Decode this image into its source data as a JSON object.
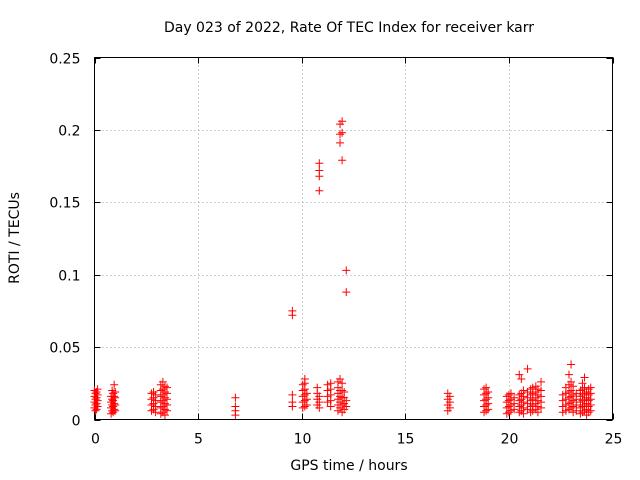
{
  "chart_data": {
    "type": "scatter",
    "title": "Day 023 of 2022, Rate Of TEC Index for receiver karr",
    "xlabel": "GPS time / hours",
    "ylabel": "ROTI / TECUs",
    "xlim": [
      0,
      25
    ],
    "ylim": [
      0,
      0.25
    ],
    "xticks": [
      0,
      5,
      10,
      15,
      20,
      25
    ],
    "xtick_labels": [
      "0",
      "5",
      "10",
      "15",
      "20",
      "25"
    ],
    "yticks": [
      0,
      0.05,
      0.1,
      0.15,
      0.2,
      0.25
    ],
    "ytick_labels": [
      "0",
      "0.05",
      "0.1",
      "0.15",
      "0.2",
      "0.25"
    ],
    "grid": true,
    "marker": "+",
    "series": [
      {
        "name": "ROTI",
        "color": "#ff0000",
        "points": [
          [
            0.0,
            0.008
          ],
          [
            0.0,
            0.012
          ],
          [
            0.0,
            0.016
          ],
          [
            0.0,
            0.02
          ],
          [
            0.05,
            0.006
          ],
          [
            0.05,
            0.01
          ],
          [
            0.05,
            0.014
          ],
          [
            0.05,
            0.018
          ],
          [
            0.1,
            0.007
          ],
          [
            0.1,
            0.011
          ],
          [
            0.1,
            0.015
          ],
          [
            0.1,
            0.019
          ],
          [
            0.15,
            0.009
          ],
          [
            0.15,
            0.013
          ],
          [
            0.15,
            0.017
          ],
          [
            0.15,
            0.021
          ],
          [
            0.8,
            0.004
          ],
          [
            0.8,
            0.008
          ],
          [
            0.8,
            0.012
          ],
          [
            0.8,
            0.016
          ],
          [
            0.85,
            0.006
          ],
          [
            0.85,
            0.01
          ],
          [
            0.85,
            0.014
          ],
          [
            0.85,
            0.02
          ],
          [
            0.9,
            0.005
          ],
          [
            0.9,
            0.009
          ],
          [
            0.9,
            0.013
          ],
          [
            0.9,
            0.018
          ],
          [
            0.95,
            0.007
          ],
          [
            0.95,
            0.011
          ],
          [
            0.95,
            0.016
          ],
          [
            0.95,
            0.024
          ],
          [
            1.0,
            0.006
          ],
          [
            1.0,
            0.01
          ],
          [
            1.0,
            0.015
          ],
          [
            1.0,
            0.019
          ],
          [
            2.75,
            0.006
          ],
          [
            2.75,
            0.01
          ],
          [
            2.75,
            0.014
          ],
          [
            2.75,
            0.018
          ],
          [
            2.85,
            0.007
          ],
          [
            2.85,
            0.011
          ],
          [
            2.85,
            0.015
          ],
          [
            2.85,
            0.019
          ],
          [
            2.95,
            0.005
          ],
          [
            2.95,
            0.009
          ],
          [
            2.95,
            0.013
          ],
          [
            2.95,
            0.017
          ],
          [
            3.2,
            0.004
          ],
          [
            3.2,
            0.008
          ],
          [
            3.2,
            0.012
          ],
          [
            3.2,
            0.016
          ],
          [
            3.2,
            0.02
          ],
          [
            3.2,
            0.024
          ],
          [
            3.3,
            0.005
          ],
          [
            3.3,
            0.009
          ],
          [
            3.3,
            0.013
          ],
          [
            3.3,
            0.017
          ],
          [
            3.3,
            0.021
          ],
          [
            3.3,
            0.026
          ],
          [
            3.4,
            0.003
          ],
          [
            3.4,
            0.007
          ],
          [
            3.4,
            0.011
          ],
          [
            3.4,
            0.015
          ],
          [
            3.4,
            0.019
          ],
          [
            3.4,
            0.023
          ],
          [
            3.5,
            0.006
          ],
          [
            3.5,
            0.01
          ],
          [
            3.5,
            0.014
          ],
          [
            3.5,
            0.018
          ],
          [
            3.5,
            0.022
          ],
          [
            6.8,
            0.003
          ],
          [
            6.8,
            0.006
          ],
          [
            6.8,
            0.009
          ],
          [
            6.8,
            0.015
          ],
          [
            9.55,
            0.009
          ],
          [
            9.55,
            0.012
          ],
          [
            9.55,
            0.017
          ],
          [
            9.55,
            0.072
          ],
          [
            9.55,
            0.075
          ],
          [
            10.05,
            0.008
          ],
          [
            10.05,
            0.012
          ],
          [
            10.05,
            0.016
          ],
          [
            10.05,
            0.02
          ],
          [
            10.05,
            0.024
          ],
          [
            10.15,
            0.009
          ],
          [
            10.15,
            0.013
          ],
          [
            10.15,
            0.017
          ],
          [
            10.15,
            0.021
          ],
          [
            10.15,
            0.025
          ],
          [
            10.15,
            0.028
          ],
          [
            10.25,
            0.01
          ],
          [
            10.25,
            0.014
          ],
          [
            10.25,
            0.018
          ],
          [
            10.75,
            0.01
          ],
          [
            10.75,
            0.014
          ],
          [
            10.75,
            0.018
          ],
          [
            10.75,
            0.022
          ],
          [
            10.85,
            0.008
          ],
          [
            10.85,
            0.012
          ],
          [
            10.85,
            0.016
          ],
          [
            10.85,
            0.158
          ],
          [
            10.85,
            0.168
          ],
          [
            10.85,
            0.172
          ],
          [
            10.85,
            0.177
          ],
          [
            11.25,
            0.012
          ],
          [
            11.25,
            0.016
          ],
          [
            11.25,
            0.02
          ],
          [
            11.25,
            0.024
          ],
          [
            11.4,
            0.009
          ],
          [
            11.4,
            0.013
          ],
          [
            11.4,
            0.017
          ],
          [
            11.4,
            0.021
          ],
          [
            11.4,
            0.025
          ],
          [
            11.75,
            0.006
          ],
          [
            11.75,
            0.01
          ],
          [
            11.75,
            0.014
          ],
          [
            11.75,
            0.018
          ],
          [
            11.75,
            0.022
          ],
          [
            11.75,
            0.026
          ],
          [
            11.85,
            0.008
          ],
          [
            11.85,
            0.012
          ],
          [
            11.85,
            0.016
          ],
          [
            11.85,
            0.02
          ],
          [
            11.85,
            0.028
          ],
          [
            11.85,
            0.191
          ],
          [
            11.85,
            0.197
          ],
          [
            11.85,
            0.204
          ],
          [
            11.95,
            0.005
          ],
          [
            11.95,
            0.01
          ],
          [
            11.95,
            0.015
          ],
          [
            11.95,
            0.02
          ],
          [
            11.95,
            0.025
          ],
          [
            11.95,
            0.179
          ],
          [
            11.95,
            0.198
          ],
          [
            11.95,
            0.206
          ],
          [
            12.05,
            0.007
          ],
          [
            12.05,
            0.011
          ],
          [
            12.05,
            0.015
          ],
          [
            12.05,
            0.019
          ],
          [
            12.15,
            0.009
          ],
          [
            12.15,
            0.013
          ],
          [
            12.15,
            0.103
          ],
          [
            12.15,
            0.088
          ],
          [
            17.05,
            0.006
          ],
          [
            17.05,
            0.01
          ],
          [
            17.05,
            0.014
          ],
          [
            17.05,
            0.018
          ],
          [
            17.15,
            0.008
          ],
          [
            17.15,
            0.012
          ],
          [
            17.15,
            0.016
          ],
          [
            18.8,
            0.005
          ],
          [
            18.8,
            0.009
          ],
          [
            18.8,
            0.013
          ],
          [
            18.8,
            0.017
          ],
          [
            18.8,
            0.021
          ],
          [
            18.9,
            0.006
          ],
          [
            18.9,
            0.01
          ],
          [
            18.9,
            0.014
          ],
          [
            18.9,
            0.018
          ],
          [
            18.9,
            0.022
          ],
          [
            19.0,
            0.007
          ],
          [
            19.0,
            0.011
          ],
          [
            19.0,
            0.015
          ],
          [
            19.0,
            0.019
          ],
          [
            19.9,
            0.004
          ],
          [
            19.9,
            0.008
          ],
          [
            19.9,
            0.012
          ],
          [
            19.9,
            0.016
          ],
          [
            20.0,
            0.005
          ],
          [
            20.0,
            0.009
          ],
          [
            20.0,
            0.013
          ],
          [
            20.0,
            0.017
          ],
          [
            20.1,
            0.006
          ],
          [
            20.1,
            0.01
          ],
          [
            20.1,
            0.014
          ],
          [
            20.1,
            0.018
          ],
          [
            20.25,
            0.007
          ],
          [
            20.25,
            0.011
          ],
          [
            20.25,
            0.015
          ],
          [
            20.5,
            0.005
          ],
          [
            20.5,
            0.009
          ],
          [
            20.5,
            0.013
          ],
          [
            20.5,
            0.017
          ],
          [
            20.5,
            0.031
          ],
          [
            20.6,
            0.006
          ],
          [
            20.6,
            0.01
          ],
          [
            20.6,
            0.014
          ],
          [
            20.6,
            0.018
          ],
          [
            20.6,
            0.028
          ],
          [
            20.7,
            0.004
          ],
          [
            20.7,
            0.008
          ],
          [
            20.7,
            0.012
          ],
          [
            20.7,
            0.016
          ],
          [
            20.7,
            0.02
          ],
          [
            20.9,
            0.007
          ],
          [
            20.9,
            0.011
          ],
          [
            20.9,
            0.015
          ],
          [
            20.9,
            0.019
          ],
          [
            20.9,
            0.035
          ],
          [
            21.05,
            0.005
          ],
          [
            21.05,
            0.009
          ],
          [
            21.05,
            0.013
          ],
          [
            21.05,
            0.017
          ],
          [
            21.05,
            0.021
          ],
          [
            21.15,
            0.006
          ],
          [
            21.15,
            0.01
          ],
          [
            21.15,
            0.014
          ],
          [
            21.15,
            0.018
          ],
          [
            21.15,
            0.022
          ],
          [
            21.3,
            0.007
          ],
          [
            21.3,
            0.011
          ],
          [
            21.3,
            0.015
          ],
          [
            21.3,
            0.019
          ],
          [
            21.3,
            0.023
          ],
          [
            21.4,
            0.005
          ],
          [
            21.4,
            0.009
          ],
          [
            21.4,
            0.013
          ],
          [
            21.4,
            0.017
          ],
          [
            21.4,
            0.021
          ],
          [
            21.55,
            0.008
          ],
          [
            21.55,
            0.012
          ],
          [
            21.55,
            0.016
          ],
          [
            21.55,
            0.02
          ],
          [
            21.55,
            0.026
          ],
          [
            22.6,
            0.005
          ],
          [
            22.6,
            0.009
          ],
          [
            22.6,
            0.013
          ],
          [
            22.6,
            0.017
          ],
          [
            22.75,
            0.006
          ],
          [
            22.75,
            0.01
          ],
          [
            22.75,
            0.014
          ],
          [
            22.75,
            0.018
          ],
          [
            22.75,
            0.022
          ],
          [
            22.9,
            0.007
          ],
          [
            22.9,
            0.011
          ],
          [
            22.9,
            0.015
          ],
          [
            22.9,
            0.019
          ],
          [
            22.9,
            0.024
          ],
          [
            22.9,
            0.031
          ],
          [
            23.0,
            0.008
          ],
          [
            23.0,
            0.012
          ],
          [
            23.0,
            0.016
          ],
          [
            23.0,
            0.02
          ],
          [
            23.0,
            0.026
          ],
          [
            23.0,
            0.038
          ],
          [
            23.1,
            0.005
          ],
          [
            23.1,
            0.009
          ],
          [
            23.1,
            0.013
          ],
          [
            23.1,
            0.017
          ],
          [
            23.1,
            0.023
          ],
          [
            23.25,
            0.006
          ],
          [
            23.25,
            0.01
          ],
          [
            23.25,
            0.014
          ],
          [
            23.25,
            0.018
          ],
          [
            23.45,
            0.004
          ],
          [
            23.45,
            0.008
          ],
          [
            23.45,
            0.012
          ],
          [
            23.45,
            0.016
          ],
          [
            23.45,
            0.02
          ],
          [
            23.55,
            0.005
          ],
          [
            23.55,
            0.009
          ],
          [
            23.55,
            0.013
          ],
          [
            23.55,
            0.017
          ],
          [
            23.55,
            0.021
          ],
          [
            23.55,
            0.025
          ],
          [
            23.65,
            0.006
          ],
          [
            23.65,
            0.01
          ],
          [
            23.65,
            0.014
          ],
          [
            23.65,
            0.018
          ],
          [
            23.65,
            0.022
          ],
          [
            23.65,
            0.029
          ],
          [
            23.75,
            0.003
          ],
          [
            23.75,
            0.007
          ],
          [
            23.75,
            0.011
          ],
          [
            23.75,
            0.015
          ],
          [
            23.75,
            0.019
          ],
          [
            23.85,
            0.005
          ],
          [
            23.85,
            0.009
          ],
          [
            23.85,
            0.013
          ],
          [
            23.85,
            0.017
          ],
          [
            23.85,
            0.021
          ],
          [
            23.95,
            0.006
          ],
          [
            23.95,
            0.01
          ],
          [
            23.95,
            0.014
          ],
          [
            23.95,
            0.018
          ],
          [
            23.95,
            0.022
          ]
        ]
      }
    ]
  }
}
